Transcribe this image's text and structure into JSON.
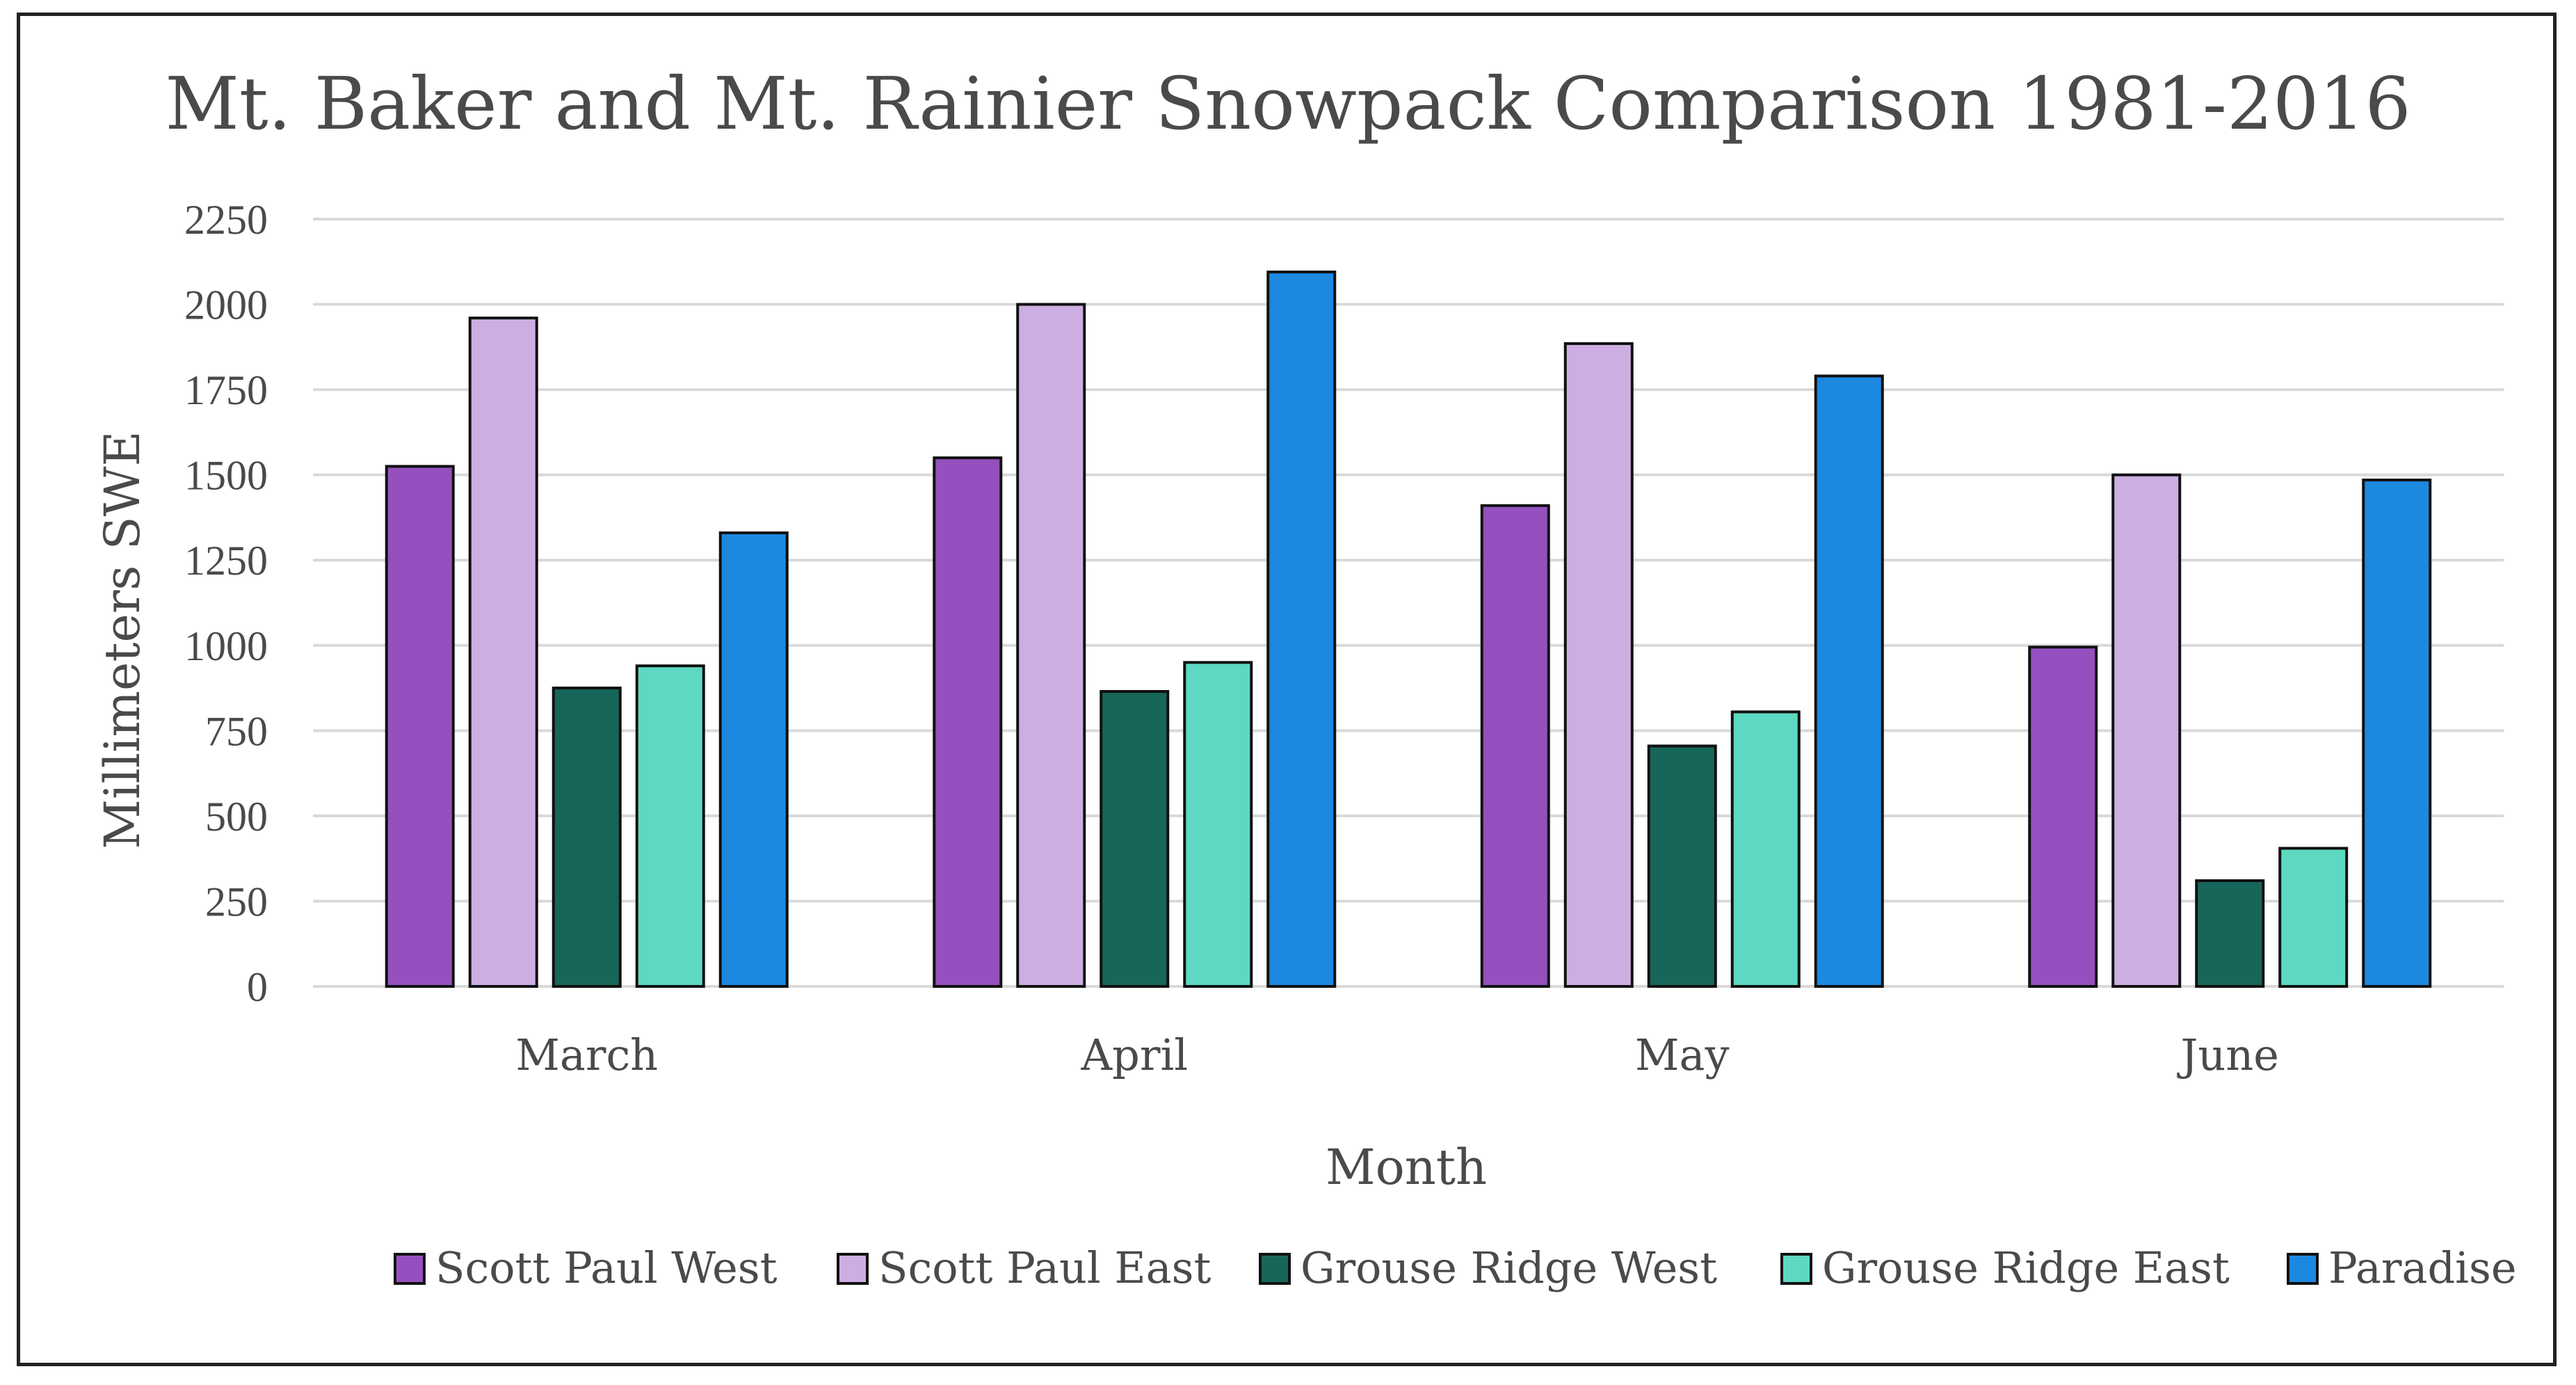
{
  "chart_data": {
    "type": "bar",
    "title": "Mt. Baker and Mt. Rainier Snowpack Comparison 1981-2016",
    "xlabel": "Month",
    "ylabel": "Millimeters SWE",
    "categories": [
      "March",
      "April",
      "May",
      "June"
    ],
    "ylim": [
      0,
      2250
    ],
    "yticks": [
      0,
      250,
      500,
      750,
      1000,
      1250,
      1500,
      1750,
      2000,
      2250
    ],
    "grid": true,
    "legend_position": "bottom",
    "series": [
      {
        "name": "Scott Paul West",
        "color": "#9450bf",
        "values": [
          1525,
          1550,
          1410,
          995
        ]
      },
      {
        "name": "Scott Paul East",
        "color": "#cdaee2",
        "values": [
          1960,
          2000,
          1885,
          1500
        ]
      },
      {
        "name": "Grouse Ridge West",
        "color": "#17665a",
        "values": [
          875,
          865,
          705,
          310
        ]
      },
      {
        "name": "Grouse Ridge East",
        "color": "#5dd9c1",
        "values": [
          940,
          950,
          805,
          405
        ]
      },
      {
        "name": "Paradise",
        "color": "#1d88e0",
        "values": [
          1330,
          2095,
          1790,
          1485
        ]
      }
    ]
  }
}
